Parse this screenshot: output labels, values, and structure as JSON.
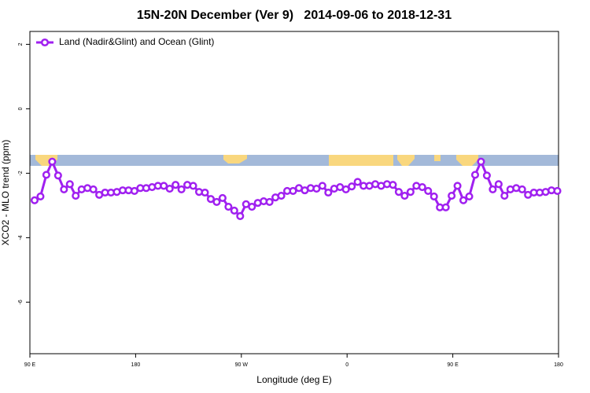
{
  "chart_data": {
    "type": "line",
    "title": "15N-20N December (Ver 9)   2014-09-06 to 2018-12-31",
    "xlabel": "Longitude (deg E)",
    "ylabel": "XCO2 - MLO trend (ppm)",
    "xlim": [
      90,
      540
    ],
    "ylim": [
      -7.6,
      2.4
    ],
    "xticks": [
      {
        "value": 90,
        "label": "90 E"
      },
      180,
      {
        "value": 270,
        "label": "90 W"
      },
      {
        "value": 360,
        "label": "0"
      },
      {
        "value": 450,
        "label": "90 E"
      },
      {
        "value": 540,
        "label": "180"
      }
    ],
    "yticks": [
      2,
      0,
      -2,
      -4,
      -6
    ],
    "grid": false,
    "legend": "top-left",
    "x": [
      94,
      99,
      104,
      109,
      114,
      119,
      124,
      129,
      134,
      139,
      144,
      149,
      154,
      159,
      164,
      169,
      174,
      179,
      184,
      189,
      194,
      199,
      204,
      209,
      214,
      219,
      224,
      229,
      234,
      239,
      244,
      249,
      254,
      259,
      264,
      269,
      274,
      279,
      284,
      289,
      294,
      299,
      304,
      309,
      314,
      319,
      324,
      329,
      334,
      339,
      344,
      349,
      354,
      359,
      364,
      369,
      374,
      379,
      384,
      389,
      394,
      399,
      404,
      409,
      414,
      419,
      424,
      429,
      434,
      439,
      444,
      449,
      454,
      459,
      464,
      469,
      474,
      479,
      484,
      489,
      494,
      499,
      504,
      509,
      514,
      519,
      524,
      529,
      534,
      539
    ],
    "series": [
      {
        "name": "Land (Nadir&Glint) and Ocean (Glint)",
        "color": "#a020f0",
        "values": [
          -2.84,
          -2.72,
          -2.05,
          -1.64,
          -2.07,
          -2.5,
          -2.34,
          -2.7,
          -2.5,
          -2.46,
          -2.5,
          -2.67,
          -2.6,
          -2.6,
          -2.58,
          -2.53,
          -2.53,
          -2.55,
          -2.46,
          -2.46,
          -2.43,
          -2.39,
          -2.39,
          -2.48,
          -2.36,
          -2.5,
          -2.36,
          -2.39,
          -2.58,
          -2.6,
          -2.8,
          -2.89,
          -2.77,
          -3.04,
          -3.16,
          -3.33,
          -2.96,
          -3.04,
          -2.92,
          -2.87,
          -2.89,
          -2.75,
          -2.7,
          -2.55,
          -2.55,
          -2.46,
          -2.53,
          -2.46,
          -2.48,
          -2.39,
          -2.6,
          -2.48,
          -2.43,
          -2.5,
          -2.41,
          -2.27,
          -2.39,
          -2.39,
          -2.34,
          -2.39,
          -2.34,
          -2.36,
          -2.58,
          -2.7,
          -2.58,
          -2.39,
          -2.43,
          -2.55,
          -2.72,
          -3.06,
          -3.06,
          -2.7,
          -2.39,
          -2.84,
          -2.72,
          -2.05,
          -1.64,
          -2.07,
          -2.5,
          -2.34,
          -2.7,
          -2.5,
          -2.46,
          -2.5,
          -2.67,
          -2.6,
          -2.6,
          -2.58,
          -2.53,
          -2.55
        ]
      }
    ]
  }
}
